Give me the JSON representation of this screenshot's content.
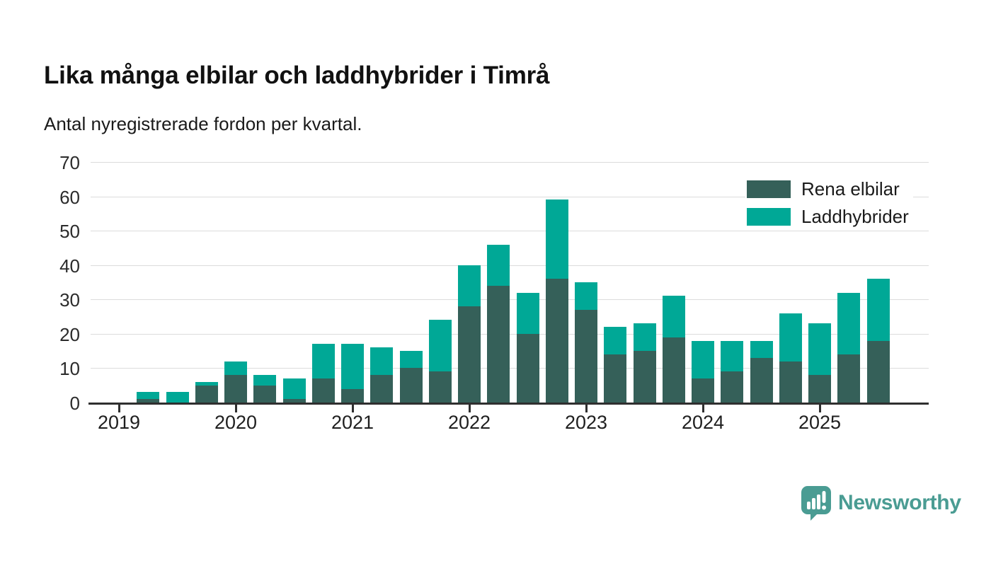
{
  "header": {
    "title": "Lika många elbilar och laddhybrider i Timrå",
    "subtitle": "Antal nyregistrerade fordon per kvartal."
  },
  "chart_data": {
    "type": "bar",
    "stacked": true,
    "title": "Lika många elbilar och laddhybrider i Timrå",
    "subtitle": "Antal nyregistrerade fordon per kvartal.",
    "ylabel": "Antal nyregistrerade fordon",
    "xlabel": "",
    "ylim": [
      0,
      70
    ],
    "yticks": [
      0,
      10,
      20,
      30,
      40,
      50,
      60,
      70
    ],
    "grid": "horizontal",
    "legend_position": "top-right",
    "years": [
      "2019",
      "2020",
      "2021",
      "2022",
      "2023",
      "2024",
      "2025"
    ],
    "categories": [
      "2019 Q2",
      "2019 Q3",
      "2019 Q4",
      "2020 Q1",
      "2020 Q2",
      "2020 Q3",
      "2020 Q4",
      "2021 Q1",
      "2021 Q2",
      "2021 Q3",
      "2021 Q4",
      "2022 Q1",
      "2022 Q2",
      "2022 Q3",
      "2022 Q4",
      "2023 Q1",
      "2023 Q2",
      "2023 Q3",
      "2023 Q4",
      "2024 Q1",
      "2024 Q2",
      "2024 Q3",
      "2024 Q4",
      "2025 Q1",
      "2025 Q2",
      "2025 Q3"
    ],
    "series": [
      {
        "name": "Rena elbilar",
        "color": "#356059",
        "values": [
          1,
          0,
          5,
          8,
          5,
          1,
          7,
          4,
          8,
          10,
          9,
          28,
          34,
          20,
          36,
          27,
          14,
          15,
          19,
          7,
          9,
          13,
          12,
          8,
          14,
          18
        ]
      },
      {
        "name": "Laddhybrider",
        "color": "#00a896",
        "values": [
          2,
          3,
          1,
          4,
          3,
          6,
          10,
          13,
          8,
          5,
          15,
          12,
          12,
          12,
          23,
          8,
          8,
          8,
          12,
          11,
          9,
          5,
          14,
          15,
          18,
          18
        ]
      }
    ],
    "totals": [
      3,
      3,
      6,
      12,
      8,
      7,
      17,
      17,
      16,
      15,
      24,
      40,
      46,
      32,
      59,
      35,
      22,
      23,
      31,
      18,
      18,
      18,
      26,
      23,
      32,
      36
    ]
  },
  "colors": {
    "grid": "#dcdcdc",
    "axis": "#2f2f2f",
    "brand": "#4a9c93"
  },
  "footer": {
    "brand": "Newsworthy"
  }
}
